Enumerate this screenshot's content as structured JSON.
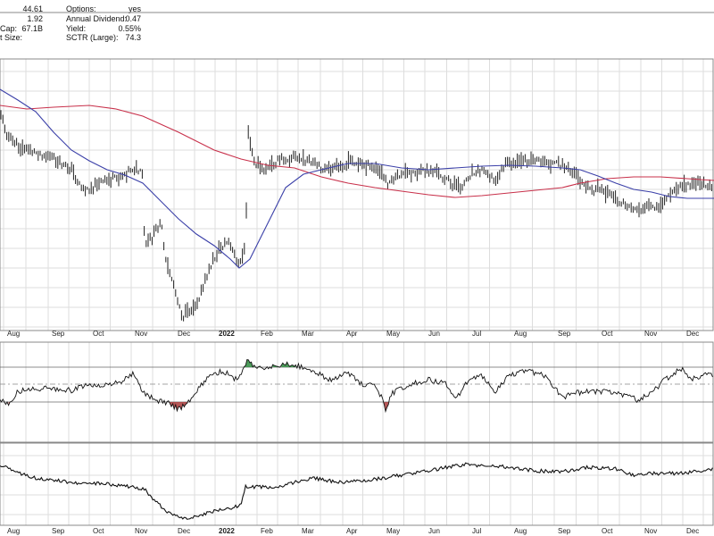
{
  "stats": {
    "left": [
      {
        "label": "",
        "value": "44.61"
      },
      {
        "label": "",
        "value": "1.92"
      },
      {
        "label": "Cap:",
        "value": "67.1B"
      },
      {
        "label": "t Size:",
        "value": ""
      }
    ],
    "right": [
      {
        "label": "Options:",
        "value": "yes"
      },
      {
        "label": "Annual Dividend:",
        "value": "0.47"
      },
      {
        "label": "Yield:",
        "value": "0.55%"
      },
      {
        "label": "SCTR (Large):",
        "value": "74.3"
      }
    ]
  },
  "chart_data": {
    "type": "bar",
    "subtype": "ohlc-price-chart-with-indicators",
    "x_axis_labels": [
      "Aug",
      "Sep",
      "Oct",
      "Nov",
      "Dec",
      "2022",
      "Feb",
      "Mar",
      "Apr",
      "May",
      "Jun",
      "Jul",
      "Aug",
      "Sep",
      "Oct",
      "Nov",
      "Dec"
    ],
    "year_label": "2022",
    "grid": true,
    "colors": {
      "price_bars": "#222222",
      "ma_short": "#3a3fa8",
      "ma_long": "#c8304a",
      "overbought_fill": "#2e8b3e",
      "oversold_fill": "#a83a3a",
      "indicator_line": "#111111",
      "grid": "#dddddd",
      "border": "#888888"
    },
    "panels": [
      "price",
      "oscillator",
      "relative-strength"
    ]
  }
}
